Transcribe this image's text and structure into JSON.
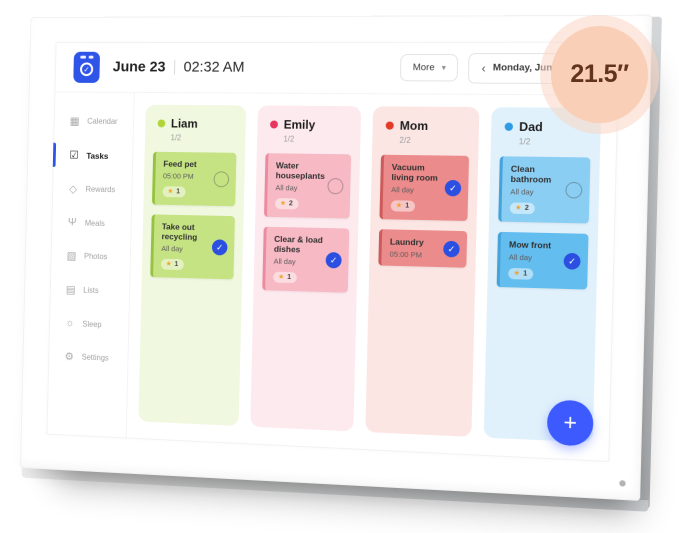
{
  "badge": {
    "label": "21.5″"
  },
  "icons": {
    "star": "★",
    "check": "✓",
    "plus": "+",
    "chevron_down": "▾",
    "chevron_left": "‹",
    "logo_check": "✓"
  },
  "app": {
    "header": {
      "date": "June 23",
      "time": "02:32 AM",
      "more_label": "More",
      "nav_date": "Monday, June 23"
    },
    "sidebar": {
      "items": [
        {
          "label": "Calendar",
          "glyph": "▦",
          "active": false
        },
        {
          "label": "Tasks",
          "glyph": "☑",
          "active": true
        },
        {
          "label": "Rewards",
          "glyph": "◇",
          "active": false
        },
        {
          "label": "Meals",
          "glyph": "Ψ",
          "active": false
        },
        {
          "label": "Photos",
          "glyph": "▧",
          "active": false
        },
        {
          "label": "Lists",
          "glyph": "▤",
          "active": false
        },
        {
          "label": "Sleep",
          "glyph": "☼",
          "active": false
        },
        {
          "label": "Settings",
          "glyph": "⚙",
          "active": false
        }
      ]
    },
    "board": {
      "columns": [
        {
          "name": "Liam",
          "progress": "1/2",
          "colors": {
            "bg": "#f1f8e0",
            "dot": "#b0d53a",
            "card": "#c6e383",
            "border": "#97c23f"
          },
          "tasks": [
            {
              "title": "Feed pet",
              "time": "05:00 PM",
              "stars": "1",
              "done": false
            },
            {
              "title": "Take out recycling",
              "time": "All day",
              "stars": "1",
              "done": true
            }
          ]
        },
        {
          "name": "Emily",
          "progress": "1/2",
          "colors": {
            "bg": "#fdeaef",
            "dot": "#e8365e",
            "card": "#f7b9c3",
            "border": "#ec8ba0"
          },
          "tasks": [
            {
              "title": "Water houseplants",
              "time": "All day",
              "stars": "2",
              "done": false
            },
            {
              "title": "Clear & load dishes",
              "time": "All day",
              "stars": "1",
              "done": true
            }
          ]
        },
        {
          "name": "Mom",
          "progress": "2/2",
          "colors": {
            "bg": "#fbe6e4",
            "dot": "#e23b28",
            "card": "#ec8b8b",
            "border": "#cd5b5b"
          },
          "tasks": [
            {
              "title": "Vacuum living room",
              "time": "All day",
              "stars": "1",
              "done": true
            },
            {
              "title": "Laundry",
              "time": "05:00 PM",
              "stars": null,
              "done": true
            }
          ]
        },
        {
          "name": "Dad",
          "progress": "1/2",
          "colors": {
            "bg": "#e1f1fb",
            "dot": "#2e9be5",
            "card": "#8bcef4",
            "border": "#45a3dc"
          },
          "tasks": [
            {
              "title": "Clean bathroom",
              "time": "All day",
              "stars": "2",
              "done": false,
              "card": "#8bcef4"
            },
            {
              "title": "Mow front",
              "time": "All day",
              "stars": "1",
              "done": true,
              "card": "#63bdee"
            }
          ]
        }
      ]
    }
  }
}
